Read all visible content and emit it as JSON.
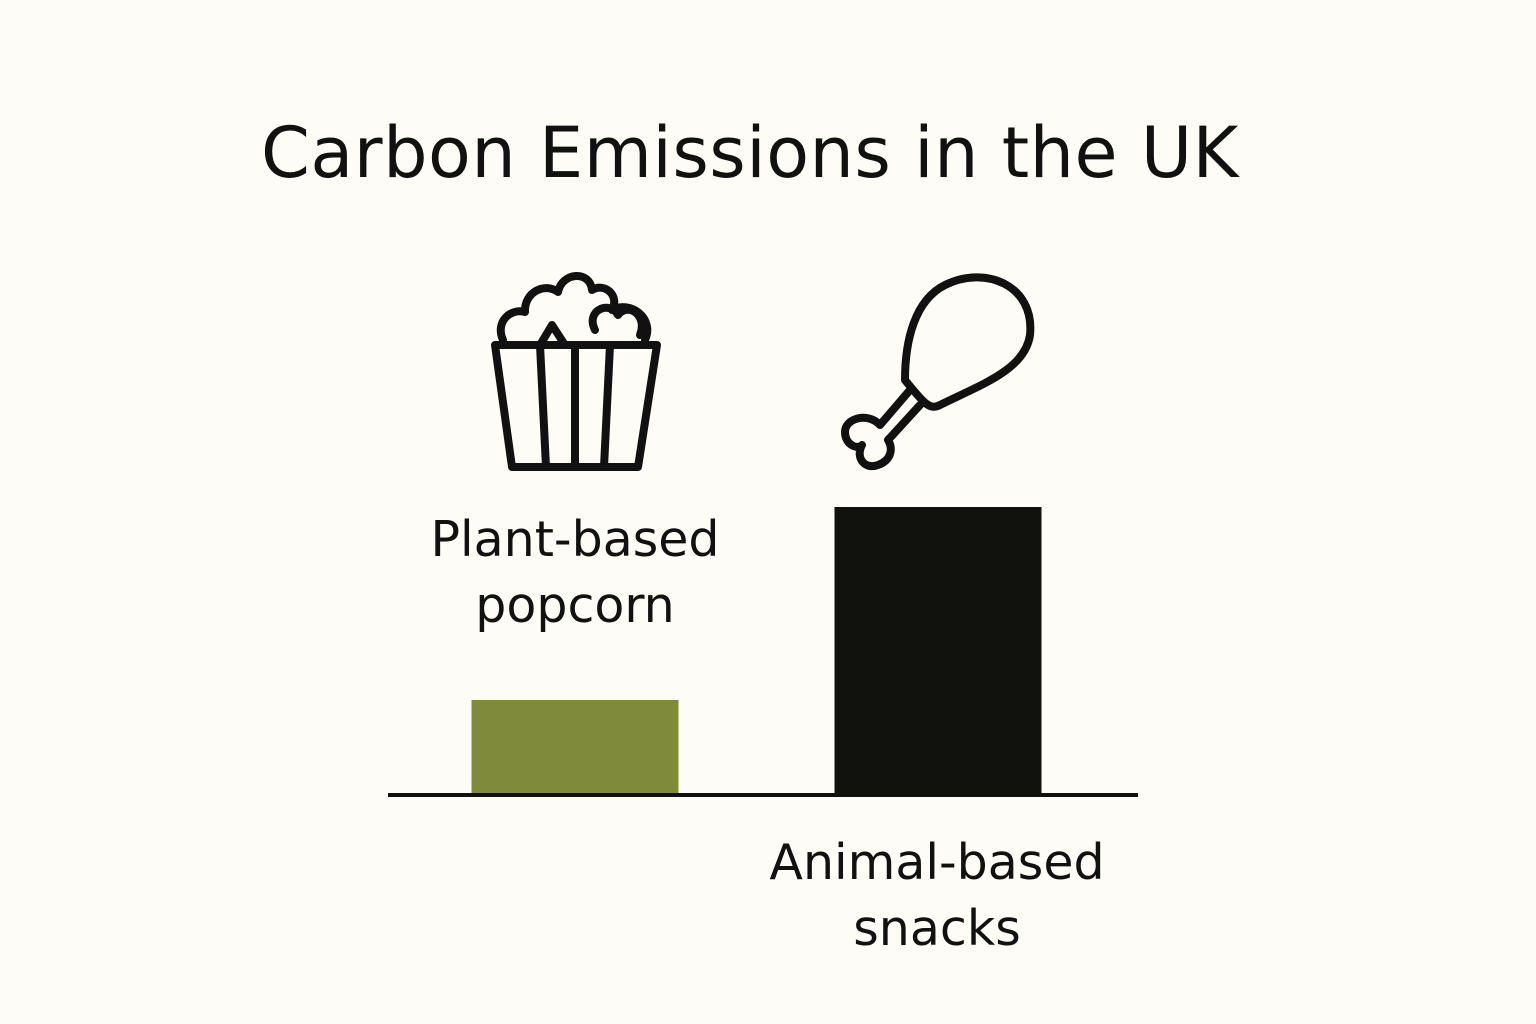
{
  "chart_data": {
    "type": "bar",
    "title": "Carbon Emissions in the UK",
    "categories": [
      "Plant-based popcorn",
      "Animal-based snacks"
    ],
    "series": [
      {
        "values": [
          95,
          288
        ],
        "colors": [
          "#7f8a3a",
          "#11120e"
        ]
      }
    ]
  }
}
